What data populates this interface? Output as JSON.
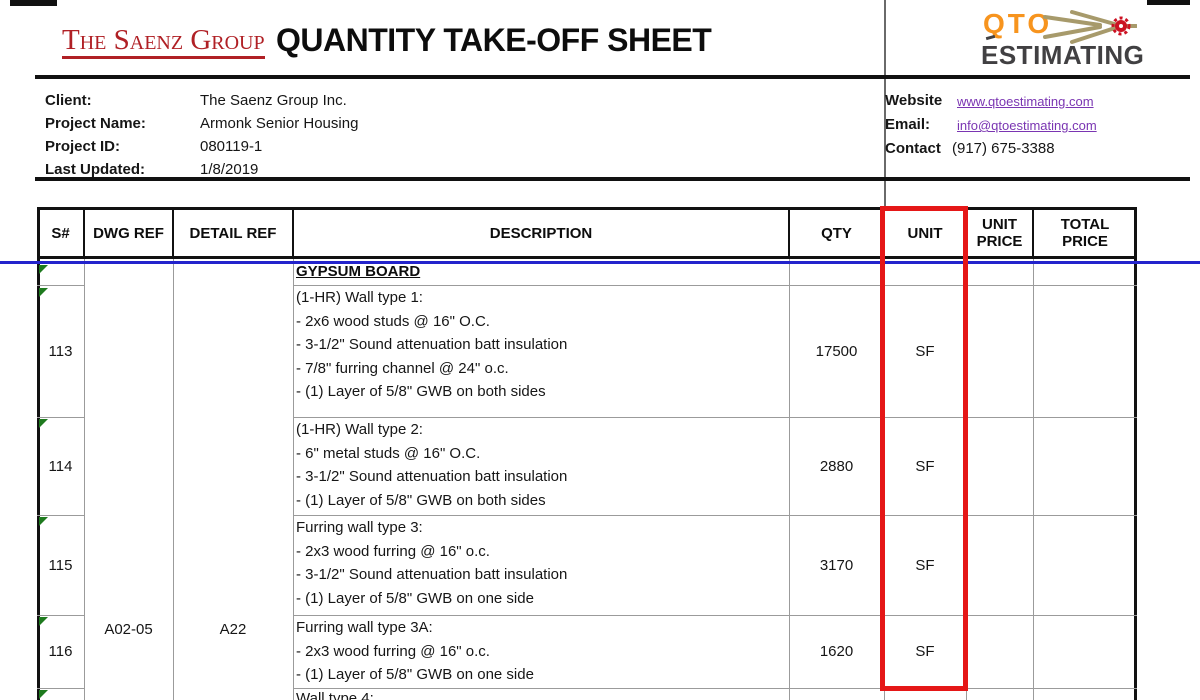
{
  "header": {
    "company_name": "The Saenz Group",
    "sheet_title": "QUANTITY TAKE-OFF SHEET",
    "logo_top": "QTO",
    "logo_bottom": "ESTIMATING"
  },
  "project_info": {
    "rows": [
      {
        "label": "Client:",
        "value": "The Saenz Group Inc."
      },
      {
        "label": "Project Name:",
        "value": "Armonk Senior Housing"
      },
      {
        "label": "Project ID:",
        "value": "080119-1"
      },
      {
        "label": "Last Updated:",
        "value": "1/8/2019"
      }
    ]
  },
  "contact_info": {
    "rows": [
      {
        "label": "Website",
        "value": "www.qtoestimating.com",
        "is_link": true
      },
      {
        "label": "Email:",
        "value": "info@qtoestimating.com",
        "is_link": true
      },
      {
        "label": "Contact",
        "value": "(917) 675-3388",
        "is_link": false
      }
    ]
  },
  "table": {
    "column_headers": [
      "S#",
      "DWG REF",
      "DETAIL REF",
      "DESCRIPTION",
      "QTY",
      "UNIT",
      "UNIT PRICE",
      "TOTAL PRICE"
    ],
    "section_heading": "GYPSUM BOARD",
    "merged_refs": {
      "dwg_ref": "A02-05",
      "detail_ref": "A22"
    },
    "rows": [
      {
        "s_no": "113",
        "description_lines": [
          "(1-HR) Wall type 1:",
          "- 2x6 wood studs @ 16\" O.C.",
          "- 3-1/2\" Sound attenuation batt insulation",
          "- 7/8\" furring channel @ 24\" o.c.",
          "- (1) Layer of 5/8\" GWB on both sides"
        ],
        "qty": "17500",
        "unit": "SF",
        "unit_price": "",
        "total_price": ""
      },
      {
        "s_no": "114",
        "description_lines": [
          "(1-HR) Wall type 2:",
          "- 6\" metal studs @ 16\" O.C.",
          "- 3-1/2\" Sound attenuation batt insulation",
          "- (1) Layer of 5/8\" GWB on both sides"
        ],
        "qty": "2880",
        "unit": "SF",
        "unit_price": "",
        "total_price": ""
      },
      {
        "s_no": "115",
        "description_lines": [
          "Furring wall type 3:",
          "- 2x3 wood furring @ 16\" o.c.",
          "- 3-1/2\" Sound attenuation batt insulation",
          "- (1) Layer of 5/8\" GWB on one side"
        ],
        "qty": "3170",
        "unit": "SF",
        "unit_price": "",
        "total_price": ""
      },
      {
        "s_no": "116",
        "description_lines": [
          "Furring wall type 3A:",
          "- 2x3 wood furring @ 16\" o.c.",
          "- (1) Layer of 5/8\" GWB on one side"
        ],
        "qty": "1620",
        "unit": "SF",
        "unit_price": "",
        "total_price": ""
      }
    ],
    "partial_row_text": "Wall type 4:"
  },
  "colors": {
    "company_red": "#B02025",
    "logo_orange": "#F7941E",
    "logo_gray": "#414042",
    "logo_tan": "#A79A6B",
    "gear_red": "#CC1122",
    "link_purple": "#7A35B2",
    "highlight_red": "#E51717",
    "pagebreak_blue": "#2323CC",
    "error_triangle_green": "#1E7A1E"
  }
}
